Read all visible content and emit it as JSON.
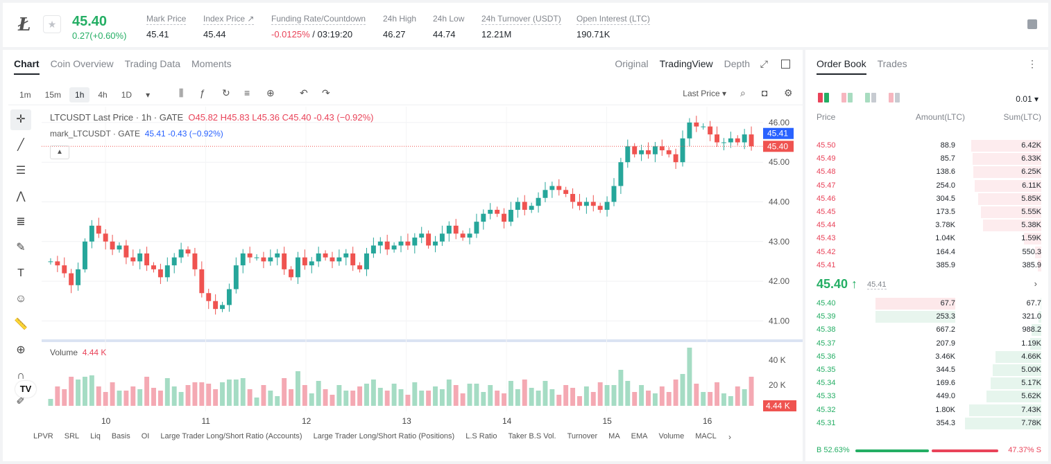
{
  "ticker": {
    "symbol_icon": "litecoin-icon",
    "star_icon": "star-icon",
    "price": "45.40",
    "change": "0.27(+0.60%)",
    "stats": [
      {
        "label": "Mark Price",
        "value": "45.41"
      },
      {
        "label": "Index Price ↗",
        "value": "45.44"
      },
      {
        "label": "Funding Rate/Countdown",
        "value_red": "-0.0125%",
        "value": "/ 03:19:20"
      },
      {
        "label": "24h High",
        "value": "46.27"
      },
      {
        "label": "24h Low",
        "value": "44.74"
      },
      {
        "label": "24h Turnover (USDT)",
        "value": "12.21M"
      },
      {
        "label": "Open Interest (LTC)",
        "value": "190.71K"
      }
    ]
  },
  "chart_tabs": [
    "Chart",
    "Coin Overview",
    "Trading Data",
    "Moments"
  ],
  "view_tabs": [
    "Original",
    "TradingView",
    "Depth"
  ],
  "intervals": [
    "1m",
    "15m",
    "1h",
    "4h",
    "1D"
  ],
  "last_price_select": "Last Price",
  "legend": {
    "main_title": "LTCUSDT Last Price · 1h · GATE",
    "ohlc_o": "O45.82",
    "ohlc_h": "H45.83",
    "ohlc_l": "L45.36",
    "ohlc_c": "C45.40",
    "ohlc_chg": "-0.43 (−0.92%)",
    "mark_title": "mark_LTCUSDT · GATE",
    "mark_val": "45.41 -0.43 (−0.92%)",
    "volume_label": "Volume",
    "volume_val": "4.44 K"
  },
  "price_axis": {
    "mark_tag": "45.41",
    "last_tag": "45.40",
    "vol_tag": "4.44 K",
    "vol_ticks": [
      "40 K",
      "20 K"
    ]
  },
  "indicators": [
    "LPVR",
    "SRL",
    "Liq",
    "Basis",
    "OI",
    "Large Trader Long/Short Ratio (Accounts)",
    "Large Trader Long/Short Ratio (Positions)",
    "L.S Ratio",
    "Taker B.S Vol.",
    "Turnover",
    "MA",
    "EMA",
    "Volume",
    "MACL"
  ],
  "chart_data": {
    "type": "candlestick",
    "title": "LTCUSDT Last Price · 1h · GATE",
    "x_tick_labels": [
      "10",
      "11",
      "12",
      "13",
      "14",
      "15",
      "16"
    ],
    "y_ticks": [
      41.0,
      42.0,
      43.0,
      44.0,
      45.0,
      46.0
    ],
    "ylim": [
      40.5,
      46.4
    ],
    "up_color": "#26a69a",
    "down_color": "#ef5350",
    "closes": [
      42.5,
      42.4,
      42.2,
      41.9,
      42.3,
      43.0,
      43.4,
      43.2,
      43.0,
      42.8,
      42.9,
      42.6,
      42.5,
      42.7,
      42.4,
      42.3,
      42.1,
      42.4,
      42.6,
      42.8,
      42.7,
      42.3,
      41.7,
      41.5,
      41.3,
      41.4,
      41.8,
      42.4,
      42.7,
      42.6,
      42.6,
      42.5,
      42.6,
      42.7,
      42.3,
      42.1,
      42.6,
      42.4,
      42.5,
      42.7,
      42.6,
      42.5,
      42.6,
      42.7,
      42.4,
      42.3,
      42.7,
      42.9,
      43.0,
      42.8,
      42.9,
      43.0,
      42.9,
      43.1,
      43.2,
      42.9,
      43.0,
      43.2,
      43.4,
      43.2,
      43.1,
      43.2,
      43.5,
      43.7,
      43.8,
      43.7,
      43.5,
      43.8,
      44.0,
      43.8,
      43.9,
      44.1,
      44.3,
      44.4,
      44.3,
      44.2,
      44.0,
      43.9,
      44.0,
      43.9,
      43.8,
      44.0,
      44.4,
      45.0,
      45.4,
      45.2,
      45.3,
      45.2,
      45.4,
      45.3,
      45.2,
      45.0,
      45.6,
      46.0,
      45.9,
      45.9,
      45.7,
      45.5,
      45.5,
      45.6,
      45.5,
      45.7,
      45.4
    ],
    "volume_axis_ticks": [
      "40 K",
      "20 K"
    ]
  },
  "order_book": {
    "tabs": [
      "Order Book",
      "Trades"
    ],
    "precision": "0.01",
    "headers": [
      "Price",
      "Amount(LTC)",
      "Sum(LTC)"
    ],
    "asks": [
      {
        "price": "45.50",
        "amount": "88.9",
        "sum": "6.42K",
        "depth": 0.92
      },
      {
        "price": "45.49",
        "amount": "85.7",
        "sum": "6.33K",
        "depth": 0.9
      },
      {
        "price": "45.48",
        "amount": "138.6",
        "sum": "6.25K",
        "depth": 0.89
      },
      {
        "price": "45.47",
        "amount": "254.0",
        "sum": "6.11K",
        "depth": 0.87
      },
      {
        "price": "45.46",
        "amount": "304.5",
        "sum": "5.85K",
        "depth": 0.83
      },
      {
        "price": "45.45",
        "amount": "173.5",
        "sum": "5.55K",
        "depth": 0.79
      },
      {
        "price": "45.44",
        "amount": "3.78K",
        "sum": "5.38K",
        "depth": 0.76
      },
      {
        "price": "45.43",
        "amount": "1.04K",
        "sum": "1.59K",
        "depth": 0.23
      },
      {
        "price": "45.42",
        "amount": "164.4",
        "sum": "550.3",
        "depth": 0.08
      },
      {
        "price": "45.41",
        "amount": "385.9",
        "sum": "385.9",
        "depth": 0.05
      }
    ],
    "mid_price": "45.40 ↑",
    "mid_mark": "45.41",
    "bids": [
      {
        "price": "45.40",
        "amount": "67.7",
        "sum": "67.7",
        "depth": 0.01,
        "amt_bar": 0.55,
        "amt_color": "#fde8ea"
      },
      {
        "price": "45.39",
        "amount": "253.3",
        "sum": "321.0",
        "depth": 0.04,
        "amt_bar": 0.55,
        "amt_color": "#e8f5ee"
      },
      {
        "price": "45.38",
        "amount": "667.2",
        "sum": "988.2",
        "depth": 0.13
      },
      {
        "price": "45.37",
        "amount": "207.9",
        "sum": "1.19K",
        "depth": 0.15
      },
      {
        "price": "45.36",
        "amount": "3.46K",
        "sum": "4.66K",
        "depth": 0.6
      },
      {
        "price": "45.35",
        "amount": "344.5",
        "sum": "5.00K",
        "depth": 0.64
      },
      {
        "price": "45.34",
        "amount": "169.6",
        "sum": "5.17K",
        "depth": 0.66
      },
      {
        "price": "45.33",
        "amount": "449.0",
        "sum": "5.62K",
        "depth": 0.72
      },
      {
        "price": "45.32",
        "amount": "1.80K",
        "sum": "7.43K",
        "depth": 0.95
      },
      {
        "price": "45.31",
        "amount": "354.3",
        "sum": "7.78K",
        "depth": 1.0
      }
    ],
    "buy_ratio": "B 52.63%",
    "sell_ratio": "47.37% S",
    "buy_fraction": 0.5263
  }
}
